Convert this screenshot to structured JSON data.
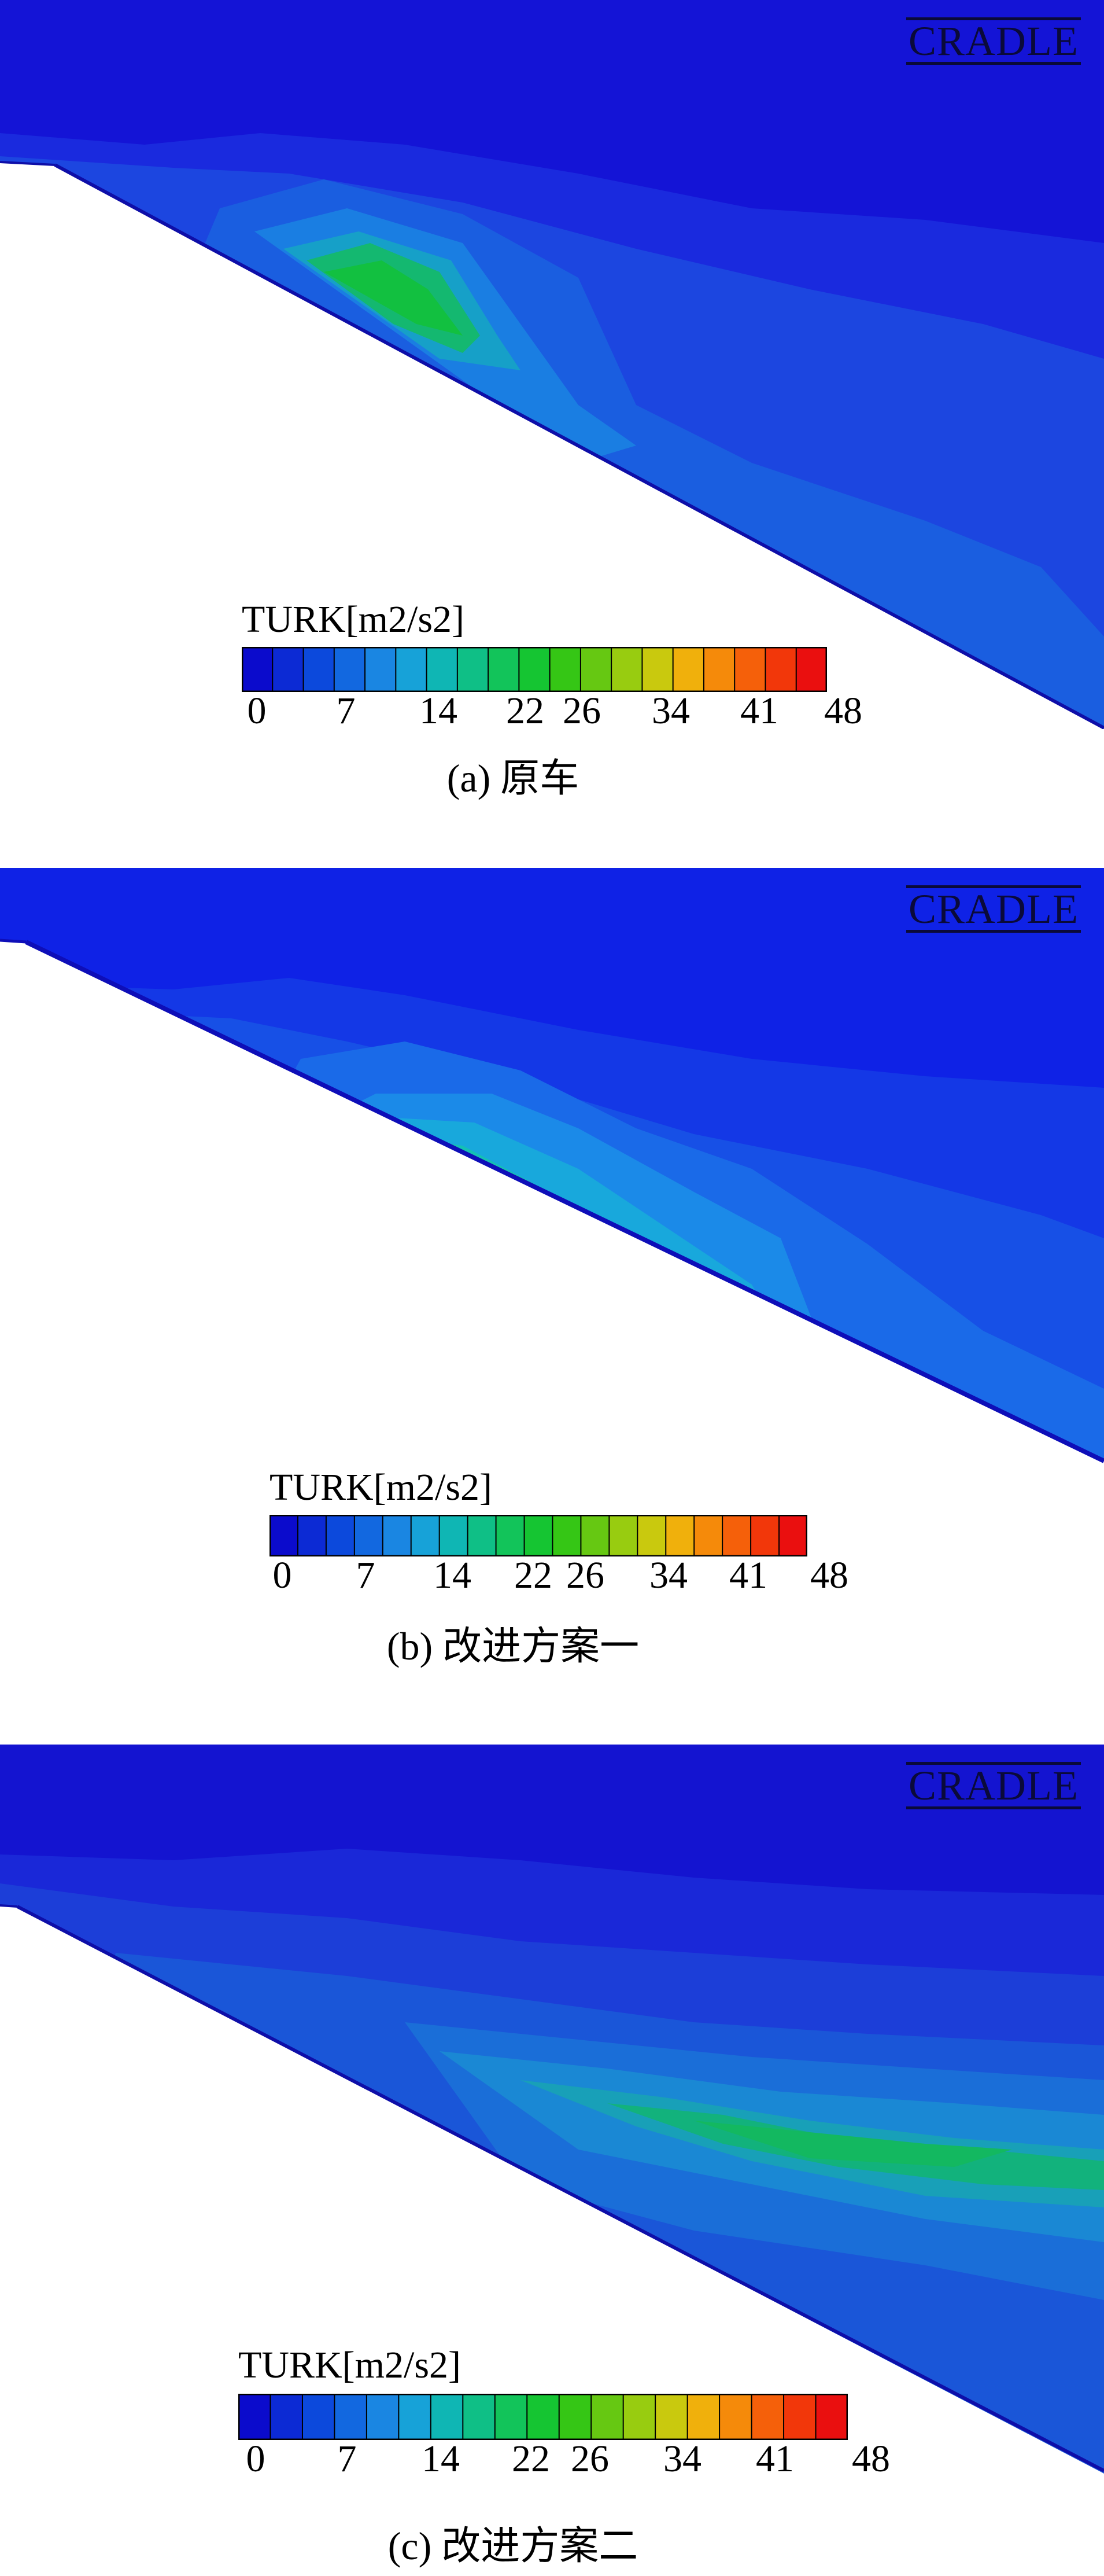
{
  "watermark": "CRADLE",
  "legend": {
    "title": "TURK[m2/s2]",
    "ticks": [
      "0",
      "7",
      "14",
      "22",
      "26",
      "34",
      "41",
      "48"
    ]
  },
  "colormap": [
    "#0b0bcc",
    "#0c2ad4",
    "#0c49dc",
    "#1268e0",
    "#1a86e2",
    "#17a2d8",
    "#0fb6b4",
    "#0fbf86",
    "#12c45a",
    "#15c532",
    "#35c615",
    "#66c812",
    "#98cc10",
    "#c9c90e",
    "#f0b00c",
    "#f58a0a",
    "#f5600a",
    "#f2370a",
    "#ea0f0f"
  ],
  "colormap_a": [
    "#0b0bcc",
    "#0c2ad4",
    "#0c49dc",
    "#1268e0",
    "#1a86e2",
    "#17a2d8",
    "#0fb6b4",
    "#0fbf86",
    "#12c45a",
    "#15c532",
    "#35c615",
    "#66c812",
    "#98cc10",
    "#c9c90e",
    "#f0b00c",
    "#f58a0a",
    "#f5600a",
    "#f2370a",
    "#ea0f0f"
  ],
  "panels": [
    {
      "key": "a",
      "caption_label": "(a)",
      "caption_text": "原车"
    },
    {
      "key": "b",
      "caption_label": "(b)",
      "caption_text": "改进方案一"
    },
    {
      "key": "c",
      "caption_label": "(c)",
      "caption_text": "改进方案二"
    }
  ]
}
